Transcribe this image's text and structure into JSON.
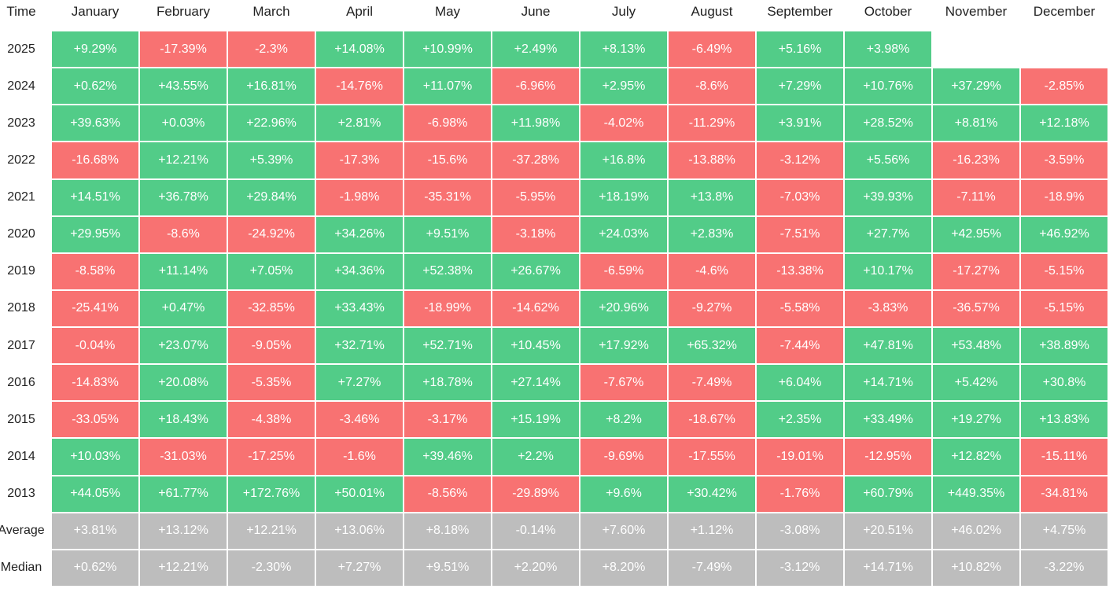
{
  "table": {
    "columns": [
      "Time",
      "January",
      "February",
      "March",
      "April",
      "May",
      "June",
      "July",
      "August",
      "September",
      "October",
      "November",
      "December"
    ],
    "rows": [
      {
        "label": "2025",
        "cells": [
          "+9.29%",
          "-17.39%",
          "-2.3%",
          "+14.08%",
          "+10.99%",
          "+2.49%",
          "+8.13%",
          "-6.49%",
          "+5.16%",
          "+3.98%"
        ]
      },
      {
        "label": "2024",
        "cells": [
          "+0.62%",
          "+43.55%",
          "+16.81%",
          "-14.76%",
          "+11.07%",
          "-6.96%",
          "+2.95%",
          "-8.6%",
          "+7.29%",
          "+10.76%",
          "+37.29%",
          "-2.85%"
        ]
      },
      {
        "label": "2023",
        "cells": [
          "+39.63%",
          "+0.03%",
          "+22.96%",
          "+2.81%",
          "-6.98%",
          "+11.98%",
          "-4.02%",
          "-11.29%",
          "+3.91%",
          "+28.52%",
          "+8.81%",
          "+12.18%"
        ]
      },
      {
        "label": "2022",
        "cells": [
          "-16.68%",
          "+12.21%",
          "+5.39%",
          "-17.3%",
          "-15.6%",
          "-37.28%",
          "+16.8%",
          "-13.88%",
          "-3.12%",
          "+5.56%",
          "-16.23%",
          "-3.59%"
        ]
      },
      {
        "label": "2021",
        "cells": [
          "+14.51%",
          "+36.78%",
          "+29.84%",
          "-1.98%",
          "-35.31%",
          "-5.95%",
          "+18.19%",
          "+13.8%",
          "-7.03%",
          "+39.93%",
          "-7.11%",
          "-18.9%"
        ]
      },
      {
        "label": "2020",
        "cells": [
          "+29.95%",
          "-8.6%",
          "-24.92%",
          "+34.26%",
          "+9.51%",
          "-3.18%",
          "+24.03%",
          "+2.83%",
          "-7.51%",
          "+27.7%",
          "+42.95%",
          "+46.92%"
        ]
      },
      {
        "label": "2019",
        "cells": [
          "-8.58%",
          "+11.14%",
          "+7.05%",
          "+34.36%",
          "+52.38%",
          "+26.67%",
          "-6.59%",
          "-4.6%",
          "-13.38%",
          "+10.17%",
          "-17.27%",
          "-5.15%"
        ]
      },
      {
        "label": "2018",
        "cells": [
          "-25.41%",
          "+0.47%",
          "-32.85%",
          "+33.43%",
          "-18.99%",
          "-14.62%",
          "+20.96%",
          "-9.27%",
          "-5.58%",
          "-3.83%",
          "-36.57%",
          "-5.15%"
        ]
      },
      {
        "label": "2017",
        "cells": [
          "-0.04%",
          "+23.07%",
          "-9.05%",
          "+32.71%",
          "+52.71%",
          "+10.45%",
          "+17.92%",
          "+65.32%",
          "-7.44%",
          "+47.81%",
          "+53.48%",
          "+38.89%"
        ]
      },
      {
        "label": "2016",
        "cells": [
          "-14.83%",
          "+20.08%",
          "-5.35%",
          "+7.27%",
          "+18.78%",
          "+27.14%",
          "-7.67%",
          "-7.49%",
          "+6.04%",
          "+14.71%",
          "+5.42%",
          "+30.8%"
        ]
      },
      {
        "label": "2015",
        "cells": [
          "-33.05%",
          "+18.43%",
          "-4.38%",
          "-3.46%",
          "-3.17%",
          "+15.19%",
          "+8.2%",
          "-18.67%",
          "+2.35%",
          "+33.49%",
          "+19.27%",
          "+13.83%"
        ]
      },
      {
        "label": "2014",
        "cells": [
          "+10.03%",
          "-31.03%",
          "-17.25%",
          "-1.6%",
          "+39.46%",
          "+2.2%",
          "-9.69%",
          "-17.55%",
          "-19.01%",
          "-12.95%",
          "+12.82%",
          "-15.11%"
        ]
      },
      {
        "label": "2013",
        "cells": [
          "+44.05%",
          "+61.77%",
          "+172.76%",
          "+50.01%",
          "-8.56%",
          "-29.89%",
          "+9.6%",
          "+30.42%",
          "-1.76%",
          "+60.79%",
          "+449.35%",
          "-34.81%"
        ]
      }
    ],
    "summary_rows": [
      {
        "label": "Average",
        "cells": [
          "+3.81%",
          "+13.12%",
          "+12.21%",
          "+13.06%",
          "+8.18%",
          "-0.14%",
          "+7.60%",
          "+1.12%",
          "-3.08%",
          "+20.51%",
          "+46.02%",
          "+4.75%"
        ]
      },
      {
        "label": "Median",
        "cells": [
          "+0.62%",
          "+12.21%",
          "-2.30%",
          "+7.27%",
          "+9.51%",
          "+2.20%",
          "+8.20%",
          "-7.49%",
          "-3.12%",
          "+14.71%",
          "+10.82%",
          "-3.22%"
        ]
      }
    ]
  }
}
